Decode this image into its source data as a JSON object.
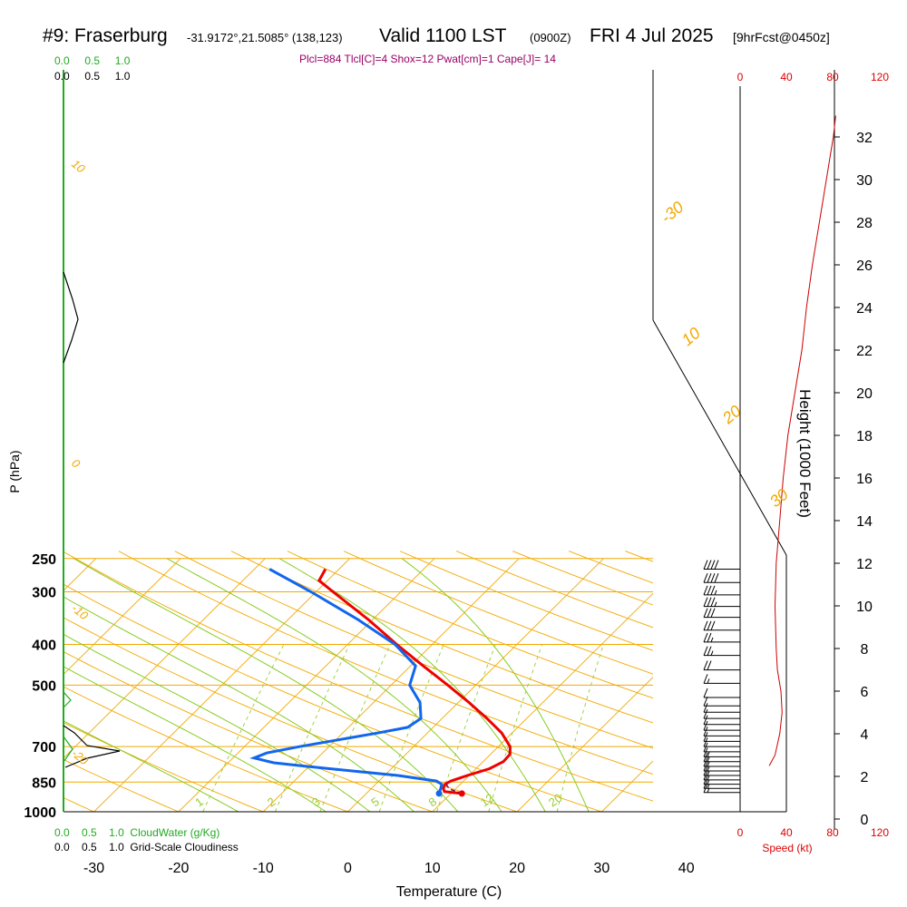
{
  "header": {
    "station": "#9: Fraserburg",
    "coords": "-31.9172°,21.5085° (138,123)",
    "valid": "Valid 1100 LST",
    "utc": "(0900Z)",
    "date": "FRI 4 Jul 2025",
    "forecast": "[9hrFcst@0450z]"
  },
  "indices": "Plcl=884 Tlcl[C]=4 Shox=12 Pwat[cm]=1 Cape[J]= 14",
  "scales": {
    "cloudwater_ticks": [
      "0.0",
      "0.5",
      "1.0"
    ],
    "cloudiness_ticks": [
      "0.0",
      "0.5",
      "1.0"
    ],
    "cloudwater_label": "CloudWater (g/Kg)",
    "cloudiness_label": "Grid-Scale Cloudiness",
    "speed_ticks": [
      "0",
      "40",
      "80",
      "120"
    ],
    "speed_label": "Speed (kt)"
  },
  "colors": {
    "temperature": "#ee0000",
    "dewpoint": "#1166ee",
    "isotherm_isobar": "#f2a900",
    "dry_adiabat": "#f2a900",
    "moist_adiabat": "#88cc22",
    "mixing_ratio": "#99cc33",
    "cloudwater": "#22aa22",
    "speed": "#cc0000"
  },
  "chart_data": {
    "type": "skew-t",
    "xlabel": "Temperature (C)",
    "ylabel": "P (hPa)",
    "y2label": "Height (1000 Feet)",
    "temperature_ticks": [
      -30,
      -20,
      -10,
      0,
      10,
      20,
      30,
      40
    ],
    "pressure_ticks": [
      250,
      300,
      400,
      500,
      700,
      850,
      1000
    ],
    "height_ticks_kft": [
      0,
      2,
      4,
      6,
      8,
      10,
      12,
      14,
      16,
      18,
      20,
      22,
      24,
      26,
      28,
      30,
      32
    ],
    "mixing_ratio_labels": [
      "1",
      "2",
      "3",
      "5",
      "8",
      "12",
      "20"
    ],
    "adiabat_labels": [
      "10",
      "0",
      "-10",
      "-20",
      "-30",
      "10",
      "20",
      "30"
    ],
    "temperature_profile": [
      {
        "p": 905,
        "t": 11.3
      },
      {
        "p": 895,
        "t": 9.0
      },
      {
        "p": 880,
        "t": 8.5
      },
      {
        "p": 860,
        "t": 8.2
      },
      {
        "p": 845,
        "t": 8.5
      },
      {
        "p": 820,
        "t": 9.8
      },
      {
        "p": 790,
        "t": 11.6
      },
      {
        "p": 760,
        "t": 12.4
      },
      {
        "p": 730,
        "t": 12.3
      },
      {
        "p": 700,
        "t": 11.4
      },
      {
        "p": 650,
        "t": 8.8
      },
      {
        "p": 600,
        "t": 5.3
      },
      {
        "p": 550,
        "t": 1.3
      },
      {
        "p": 500,
        "t": -3.3
      },
      {
        "p": 450,
        "t": -8.5
      },
      {
        "p": 400,
        "t": -14.2
      },
      {
        "p": 350,
        "t": -20.4
      },
      {
        "p": 300,
        "t": -28.0
      },
      {
        "p": 282,
        "t": -31.0
      },
      {
        "p": 265,
        "t": -31.6
      }
    ],
    "dewpoint_profile": [
      {
        "p": 905,
        "td": 8.6
      },
      {
        "p": 880,
        "td": 8.2
      },
      {
        "p": 860,
        "td": 7.8
      },
      {
        "p": 845,
        "td": 6.8
      },
      {
        "p": 820,
        "td": 1.6
      },
      {
        "p": 800,
        "td": -4.2
      },
      {
        "p": 780,
        "td": -10.2
      },
      {
        "p": 765,
        "td": -14.6
      },
      {
        "p": 745,
        "td": -17.5
      },
      {
        "p": 725,
        "td": -16.6
      },
      {
        "p": 700,
        "td": -13.5
      },
      {
        "p": 650,
        "td": -5.9
      },
      {
        "p": 630,
        "td": -3.0
      },
      {
        "p": 600,
        "td": -2.5
      },
      {
        "p": 550,
        "td": -4.5
      },
      {
        "p": 500,
        "td": -7.8
      },
      {
        "p": 450,
        "td": -9.4
      },
      {
        "p": 400,
        "td": -14.4
      },
      {
        "p": 350,
        "td": -21.6
      },
      {
        "p": 300,
        "td": -30.6
      },
      {
        "p": 265,
        "td": -38.2
      }
    ],
    "parcel_profile": [
      {
        "p": 905,
        "t": 11.3
      },
      {
        "p": 885,
        "t": 9.5
      },
      {
        "p": 870,
        "t": 8.7
      },
      {
        "p": 860,
        "t": 8.4
      }
    ],
    "wind_speed_profile_kt": [
      {
        "h": 2.5,
        "s": 25
      },
      {
        "h": 3.0,
        "s": 30
      },
      {
        "h": 4.0,
        "s": 34
      },
      {
        "h": 5.0,
        "s": 36
      },
      {
        "h": 6.0,
        "s": 35
      },
      {
        "h": 7.0,
        "s": 32
      },
      {
        "h": 8.0,
        "s": 31
      },
      {
        "h": 10.0,
        "s": 30
      },
      {
        "h": 12.0,
        "s": 31
      },
      {
        "h": 14.0,
        "s": 34
      },
      {
        "h": 16.0,
        "s": 37
      },
      {
        "h": 18.0,
        "s": 41
      },
      {
        "h": 20.0,
        "s": 47
      },
      {
        "h": 22.0,
        "s": 53
      },
      {
        "h": 24.0,
        "s": 57
      },
      {
        "h": 26.0,
        "s": 62
      },
      {
        "h": 28.0,
        "s": 68
      },
      {
        "h": 30.0,
        "s": 74
      },
      {
        "h": 31.0,
        "s": 77
      },
      {
        "h": 32.0,
        "s": 80
      },
      {
        "h": 33.0,
        "s": 82
      }
    ],
    "wind_barbs": [
      {
        "p": 265,
        "kt": 40
      },
      {
        "p": 285,
        "kt": 40
      },
      {
        "p": 305,
        "kt": 35
      },
      {
        "p": 325,
        "kt": 35
      },
      {
        "p": 345,
        "kt": 30
      },
      {
        "p": 370,
        "kt": 30
      },
      {
        "p": 395,
        "kt": 25
      },
      {
        "p": 425,
        "kt": 25
      },
      {
        "p": 460,
        "kt": 20
      },
      {
        "p": 495,
        "kt": 15
      },
      {
        "p": 535,
        "kt": 10
      },
      {
        "p": 560,
        "kt": 10
      },
      {
        "p": 580,
        "kt": 10
      },
      {
        "p": 600,
        "kt": 10
      },
      {
        "p": 620,
        "kt": 10
      },
      {
        "p": 640,
        "kt": 10
      },
      {
        "p": 660,
        "kt": 10
      },
      {
        "p": 680,
        "kt": 10
      },
      {
        "p": 700,
        "kt": 10
      },
      {
        "p": 720,
        "kt": 10
      },
      {
        "p": 740,
        "kt": 15
      },
      {
        "p": 760,
        "kt": 15
      },
      {
        "p": 780,
        "kt": 15
      },
      {
        "p": 800,
        "kt": 15
      },
      {
        "p": 820,
        "kt": 15
      },
      {
        "p": 840,
        "kt": 15
      },
      {
        "p": 860,
        "kt": 15
      },
      {
        "p": 880,
        "kt": 15
      },
      {
        "p": 900,
        "kt": 15
      }
    ]
  }
}
